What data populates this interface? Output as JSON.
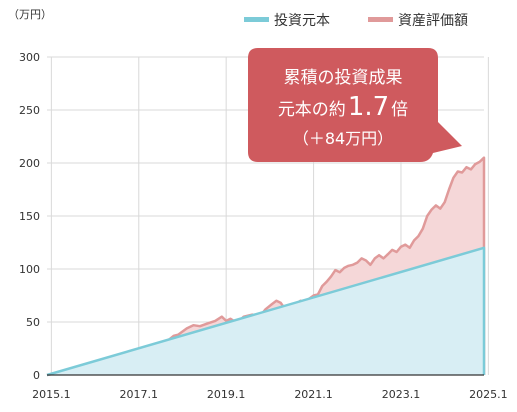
{
  "chart_data": {
    "type": "area",
    "unit_label": "（万円）",
    "x_ticks": [
      "2015.1",
      "2017.1",
      "2019.1",
      "2021.1",
      "2023.1",
      "2025.1"
    ],
    "y_ticks": [
      0,
      50,
      100,
      150,
      200,
      250,
      300
    ],
    "ylim": [
      0,
      300
    ],
    "xlim": [
      2015.0,
      2025.0
    ],
    "grid": true,
    "legend_position": "top-right",
    "series": [
      {
        "name": "投資元本",
        "color": "#7ccbd8",
        "fill": "#d8eef4",
        "points": [
          [
            2015.0,
            0
          ],
          [
            2025.0,
            120
          ]
        ]
      },
      {
        "name": "資産評価額",
        "color": "#e09a9a",
        "fill": "#f5d7d8",
        "points": [
          [
            2015.0,
            0
          ],
          [
            2015.4,
            3
          ],
          [
            2015.8,
            7
          ],
          [
            2016.2,
            9
          ],
          [
            2016.6,
            12
          ],
          [
            2016.9,
            16
          ],
          [
            2017.0,
            18
          ],
          [
            2017.25,
            25
          ],
          [
            2017.5,
            28
          ],
          [
            2017.75,
            32
          ],
          [
            2017.9,
            37
          ],
          [
            2018.0,
            38
          ],
          [
            2018.2,
            44
          ],
          [
            2018.35,
            47
          ],
          [
            2018.5,
            46
          ],
          [
            2018.7,
            49
          ],
          [
            2018.85,
            51
          ],
          [
            2019.0,
            55
          ],
          [
            2019.1,
            51
          ],
          [
            2019.2,
            53
          ],
          [
            2019.35,
            49
          ],
          [
            2019.5,
            55
          ],
          [
            2019.7,
            57
          ],
          [
            2019.85,
            54
          ],
          [
            2020.0,
            62
          ],
          [
            2020.15,
            67
          ],
          [
            2020.25,
            70
          ],
          [
            2020.35,
            68
          ],
          [
            2020.45,
            62
          ],
          [
            2020.55,
            60
          ],
          [
            2020.65,
            66
          ],
          [
            2020.8,
            70
          ],
          [
            2020.9,
            68
          ],
          [
            2021.0,
            72
          ],
          [
            2021.1,
            75
          ],
          [
            2021.2,
            76
          ],
          [
            2021.3,
            84
          ],
          [
            2021.4,
            88
          ],
          [
            2021.5,
            93
          ],
          [
            2021.6,
            99
          ],
          [
            2021.7,
            97
          ],
          [
            2021.8,
            101
          ],
          [
            2021.9,
            103
          ],
          [
            2022.0,
            104
          ],
          [
            2022.1,
            106
          ],
          [
            2022.2,
            110
          ],
          [
            2022.3,
            108
          ],
          [
            2022.4,
            104
          ],
          [
            2022.5,
            110
          ],
          [
            2022.6,
            113
          ],
          [
            2022.7,
            110
          ],
          [
            2022.8,
            114
          ],
          [
            2022.9,
            118
          ],
          [
            2023.0,
            116
          ],
          [
            2023.1,
            121
          ],
          [
            2023.2,
            123
          ],
          [
            2023.3,
            120
          ],
          [
            2023.4,
            127
          ],
          [
            2023.5,
            131
          ],
          [
            2023.6,
            138
          ],
          [
            2023.7,
            150
          ],
          [
            2023.8,
            156
          ],
          [
            2023.9,
            160
          ],
          [
            2024.0,
            157
          ],
          [
            2024.1,
            163
          ],
          [
            2024.2,
            175
          ],
          [
            2024.3,
            186
          ],
          [
            2024.4,
            192
          ],
          [
            2024.5,
            191
          ],
          [
            2024.6,
            196
          ],
          [
            2024.7,
            194
          ],
          [
            2024.8,
            199
          ],
          [
            2024.9,
            201
          ],
          [
            2024.95,
            203
          ],
          [
            2025.0,
            205
          ]
        ]
      }
    ],
    "annotation": {
      "lines": [
        "累積の投資成果",
        "元本の約",
        "1.7",
        "倍",
        "（＋84万円）"
      ],
      "fill": "#cf5a5e"
    }
  }
}
